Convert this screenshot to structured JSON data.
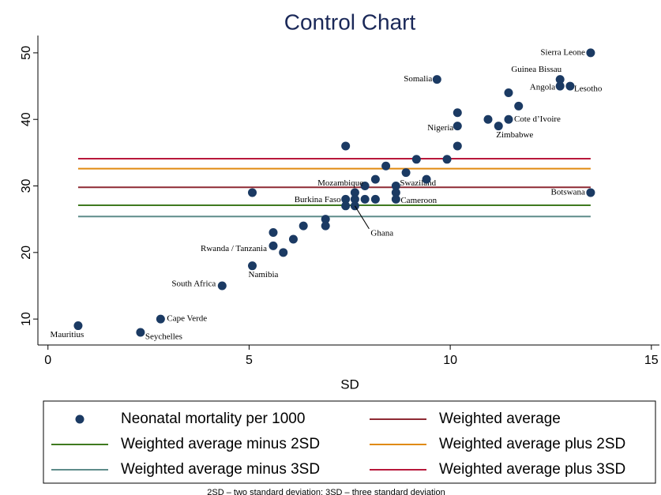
{
  "chart_data": {
    "type": "scatter",
    "title": "Control Chart",
    "x_label": "SD",
    "note": "2SD – two standard deviation; 3SD – three standard deviation",
    "xlim": [
      -0.25,
      15.2
    ],
    "ylim": [
      6.1,
      52.6
    ],
    "xticks": [
      0,
      5,
      10,
      15
    ],
    "yticks": [
      10,
      20,
      30,
      40,
      50
    ],
    "grid": false,
    "series": [
      {
        "name": "Neonatal mortality per 1000",
        "kind": "scatter",
        "color": "#1b3a63",
        "x": [
          0.75,
          2.3,
          2.8,
          4.33,
          5.08,
          5.08,
          5.6,
          5.6,
          5.85,
          6.1,
          6.35,
          6.9,
          6.9,
          7.4,
          7.4,
          7.4,
          7.63,
          7.63,
          7.63,
          7.88,
          7.88,
          8.14,
          8.14,
          8.4,
          8.65,
          8.65,
          8.65,
          8.9,
          9.16,
          9.41,
          9.67,
          9.92,
          10.18,
          10.18,
          10.18,
          10.94,
          11.2,
          11.45,
          11.45,
          11.7,
          12.73,
          12.73,
          12.98,
          13.49,
          13.49
        ],
        "values": [
          9,
          8,
          10,
          15,
          18,
          29,
          21,
          23,
          20,
          22,
          24,
          25,
          24,
          36,
          28,
          27,
          29,
          28,
          27,
          30,
          28,
          28,
          31,
          33,
          29,
          30,
          28,
          32,
          34,
          31,
          46,
          34,
          36,
          39,
          41,
          40,
          39,
          44,
          40,
          42,
          46,
          45,
          45,
          50,
          29
        ],
        "point_labels": [
          "Mauritius",
          "Seychelles",
          "Cape Verde",
          "South Africa",
          "Namibia",
          null,
          "Rwanda / Tanzania",
          null,
          null,
          null,
          null,
          null,
          null,
          null,
          "Burkina Faso",
          null,
          null,
          null,
          "Ghana",
          "Mozambique",
          null,
          null,
          null,
          null,
          null,
          "Swaziland",
          "Cameroon",
          null,
          null,
          null,
          "Somalia",
          null,
          null,
          "Nigeria",
          null,
          null,
          "Zimbabwe",
          null,
          "Cote d’Ivoire",
          null,
          "Guinea Bissau",
          "Angola",
          "Lesotho",
          "Sierra Leone",
          "Botswana"
        ]
      },
      {
        "name": "Weighted average",
        "kind": "line",
        "color": "#8e2a33",
        "x": [
          0.75,
          13.49
        ],
        "values": [
          29.8,
          29.8
        ]
      },
      {
        "name": "Weighted average minus 2SD",
        "kind": "line",
        "color": "#3f7a1f",
        "x": [
          0.75,
          13.49
        ],
        "values": [
          27.1,
          27.1
        ]
      },
      {
        "name": "Weighted average plus 2SD",
        "kind": "line",
        "color": "#e08a10",
        "x": [
          0.75,
          13.49
        ],
        "values": [
          32.6,
          32.6
        ]
      },
      {
        "name": "Weighted average minus 3SD",
        "kind": "line",
        "color": "#5e8c8a",
        "x": [
          0.75,
          13.49
        ],
        "values": [
          25.4,
          25.4
        ]
      },
      {
        "name": "Weighted average plus 3SD",
        "kind": "line",
        "color": "#b8183a",
        "x": [
          0.75,
          13.49
        ],
        "values": [
          34.1,
          34.1
        ]
      }
    ]
  }
}
